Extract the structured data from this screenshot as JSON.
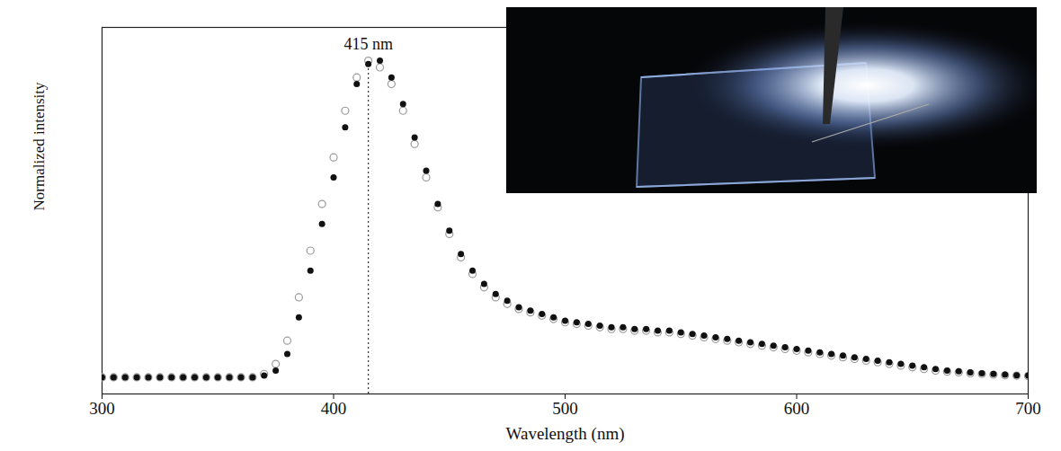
{
  "chart_data": {
    "type": "scatter",
    "x_label": "Wavelength (nm)",
    "y_label": "Normalized intensity",
    "x": [
      300,
      305,
      310,
      315,
      320,
      325,
      330,
      335,
      340,
      345,
      350,
      355,
      360,
      365,
      370,
      375,
      380,
      385,
      390,
      395,
      400,
      405,
      410,
      415,
      420,
      425,
      430,
      435,
      440,
      445,
      450,
      455,
      460,
      465,
      470,
      475,
      480,
      485,
      490,
      495,
      500,
      505,
      510,
      515,
      520,
      525,
      530,
      535,
      540,
      545,
      550,
      555,
      560,
      565,
      570,
      575,
      580,
      585,
      590,
      595,
      600,
      605,
      610,
      615,
      620,
      625,
      630,
      635,
      640,
      645,
      650,
      655,
      660,
      665,
      670,
      675,
      680,
      685,
      690,
      695,
      700
    ],
    "series": [
      {
        "color": "#111111",
        "marker": "circle",
        "values": [
          0.05,
          0.05,
          0.05,
          0.05,
          0.05,
          0.05,
          0.05,
          0.05,
          0.05,
          0.05,
          0.05,
          0.05,
          0.05,
          0.05,
          0.055,
          0.07,
          0.12,
          0.23,
          0.37,
          0.51,
          0.65,
          0.8,
          0.93,
          0.99,
          1.0,
          0.95,
          0.87,
          0.77,
          0.67,
          0.57,
          0.49,
          0.42,
          0.37,
          0.33,
          0.3,
          0.28,
          0.26,
          0.25,
          0.24,
          0.23,
          0.22,
          0.215,
          0.21,
          0.205,
          0.2,
          0.2,
          0.195,
          0.195,
          0.19,
          0.19,
          0.185,
          0.18,
          0.175,
          0.17,
          0.165,
          0.16,
          0.155,
          0.15,
          0.145,
          0.14,
          0.135,
          0.13,
          0.125,
          0.12,
          0.115,
          0.11,
          0.105,
          0.1,
          0.095,
          0.09,
          0.085,
          0.08,
          0.075,
          0.07,
          0.068,
          0.065,
          0.062,
          0.06,
          0.058,
          0.056,
          0.055
        ]
      },
      {
        "color": "#9a9a9a",
        "marker": "open circle",
        "values": [
          0.05,
          0.05,
          0.05,
          0.05,
          0.05,
          0.05,
          0.05,
          0.05,
          0.05,
          0.05,
          0.05,
          0.05,
          0.05,
          0.05,
          0.06,
          0.09,
          0.16,
          0.29,
          0.43,
          0.57,
          0.71,
          0.85,
          0.95,
          1.0,
          0.98,
          0.93,
          0.85,
          0.75,
          0.65,
          0.56,
          0.48,
          0.41,
          0.36,
          0.32,
          0.29,
          0.27,
          0.255,
          0.245,
          0.235,
          0.225,
          0.215,
          0.21,
          0.205,
          0.2,
          0.195,
          0.195,
          0.19,
          0.19,
          0.185,
          0.185,
          0.18,
          0.175,
          0.17,
          0.165,
          0.16,
          0.155,
          0.15,
          0.145,
          0.14,
          0.135,
          0.13,
          0.125,
          0.12,
          0.115,
          0.11,
          0.105,
          0.1,
          0.095,
          0.09,
          0.085,
          0.08,
          0.075,
          0.07,
          0.067,
          0.065,
          0.062,
          0.06,
          0.058,
          0.056,
          0.055,
          0.054
        ]
      }
    ],
    "annotations": [
      {
        "text": "415 nm",
        "x": 415,
        "line_style": "dotted"
      }
    ],
    "xlim": [
      300,
      700
    ],
    "xticks": [
      300,
      400,
      500,
      600,
      700
    ],
    "ylim": [
      0,
      1.1
    ],
    "yticks": [],
    "tick_labels": "x",
    "grid": false
  }
}
